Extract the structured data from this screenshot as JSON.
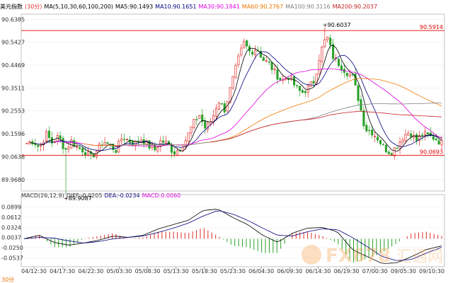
{
  "header": {
    "instrument": "美元指数",
    "period": "(30分)",
    "ma_params": "MA(5,10,30,60,100,200)",
    "ma5": "MA5:90.1493",
    "ma10": "MA10:90.1651",
    "ma30": "MA30:90.1841",
    "ma60": "MA60:90.2767",
    "ma100": "MA100:90.3116",
    "ma200": "MA200:90.2037"
  },
  "macd_header": {
    "params": "MACD(26,12,9)",
    "diff": "DIFF:-0.0205",
    "dea": "DEA:-0.0234",
    "macd": "MACD:0.0060"
  },
  "footer": {
    "left_label": "30分"
  },
  "colors": {
    "up": "#e0312d",
    "down": "#28a028",
    "ma5": "#000000",
    "ma10": "#000080",
    "ma30": "#e000e0",
    "ma60": "#f07800",
    "ma100": "#808080",
    "ma200": "#c81e1e",
    "hline": "#e60000",
    "diff": "#000000",
    "dea": "#000080"
  },
  "watermark": {
    "text": "FX678",
    "cn": "汇通网"
  },
  "chart_data": {
    "type": "candlestick",
    "price_axis": {
      "range": [
        89.92,
        90.66
      ],
      "ticks": [
        "90.6385",
        "90.5427",
        "90.4469",
        "90.3511",
        "90.2553",
        "90.1596",
        "90.0638",
        "89.9680"
      ]
    },
    "macd_axis": {
      "range": [
        -0.075,
        0.105
      ],
      "ticks": [
        "0.0899",
        "0.0612",
        "0.0324",
        "0.0037",
        "-0.0250",
        "-0.0537"
      ]
    },
    "x_ticks": [
      "04/12:30",
      "04/17:30",
      "04/22:30",
      "05/03:30",
      "05/08:30",
      "05/13:30",
      "05/18:30",
      "05/23:30",
      "06/04:30",
      "06/09:30",
      "06/14:30",
      "06/19:30",
      "07/00:30",
      "09/05:30",
      "09/10:30"
    ],
    "annotations": [
      {
        "text": "90.6037",
        "value": 90.6037
      },
      {
        "text": "89.9087",
        "value": 89.9087
      }
    ],
    "hlines": [
      {
        "label": "90.5914",
        "value": 90.5914
      },
      {
        "label": "90.0693",
        "value": 90.0693
      }
    ],
    "close_anchors": [
      90.12,
      90.13,
      90.1,
      90.16,
      90.12,
      90.15,
      90.09,
      90.13,
      90.1,
      90.09,
      90.06,
      90.09,
      90.13,
      90.11,
      90.09,
      90.15,
      90.13,
      90.12,
      90.14,
      90.11,
      90.09,
      90.13,
      90.12,
      90.08,
      90.1,
      90.14,
      90.2,
      90.24,
      90.18,
      90.22,
      90.3,
      90.26,
      90.36,
      90.46,
      90.54,
      90.5,
      90.52,
      90.47,
      90.45,
      90.41,
      90.38,
      90.4,
      90.36,
      90.33,
      90.35,
      90.38,
      90.5,
      90.57,
      90.48,
      90.45,
      90.42,
      90.4,
      90.3,
      90.18,
      90.17,
      90.14,
      90.1,
      90.08,
      90.11,
      90.15,
      90.17,
      90.13,
      90.16,
      90.15,
      90.14,
      90.12
    ],
    "macd_diff_anchors": [
      0.0,
      0.01,
      -0.01,
      -0.018,
      -0.012,
      -0.004,
      0.008,
      0.004,
      0.01,
      0.028,
      0.04,
      0.052,
      0.08,
      0.084,
      0.06,
      0.04,
      0.01,
      -0.01,
      0.016,
      0.03,
      0.032,
      0.02,
      -0.03,
      -0.05,
      -0.07,
      -0.068,
      -0.05,
      -0.03,
      -0.02
    ],
    "macd_dea_anchors": [
      0.0,
      0.004,
      0.002,
      -0.006,
      -0.012,
      -0.008,
      0.0,
      0.004,
      0.008,
      0.018,
      0.03,
      0.044,
      0.064,
      0.08,
      0.07,
      0.052,
      0.03,
      0.01,
      0.008,
      0.02,
      0.028,
      0.026,
      0.004,
      -0.022,
      -0.05,
      -0.062,
      -0.058,
      -0.04,
      -0.024
    ]
  }
}
